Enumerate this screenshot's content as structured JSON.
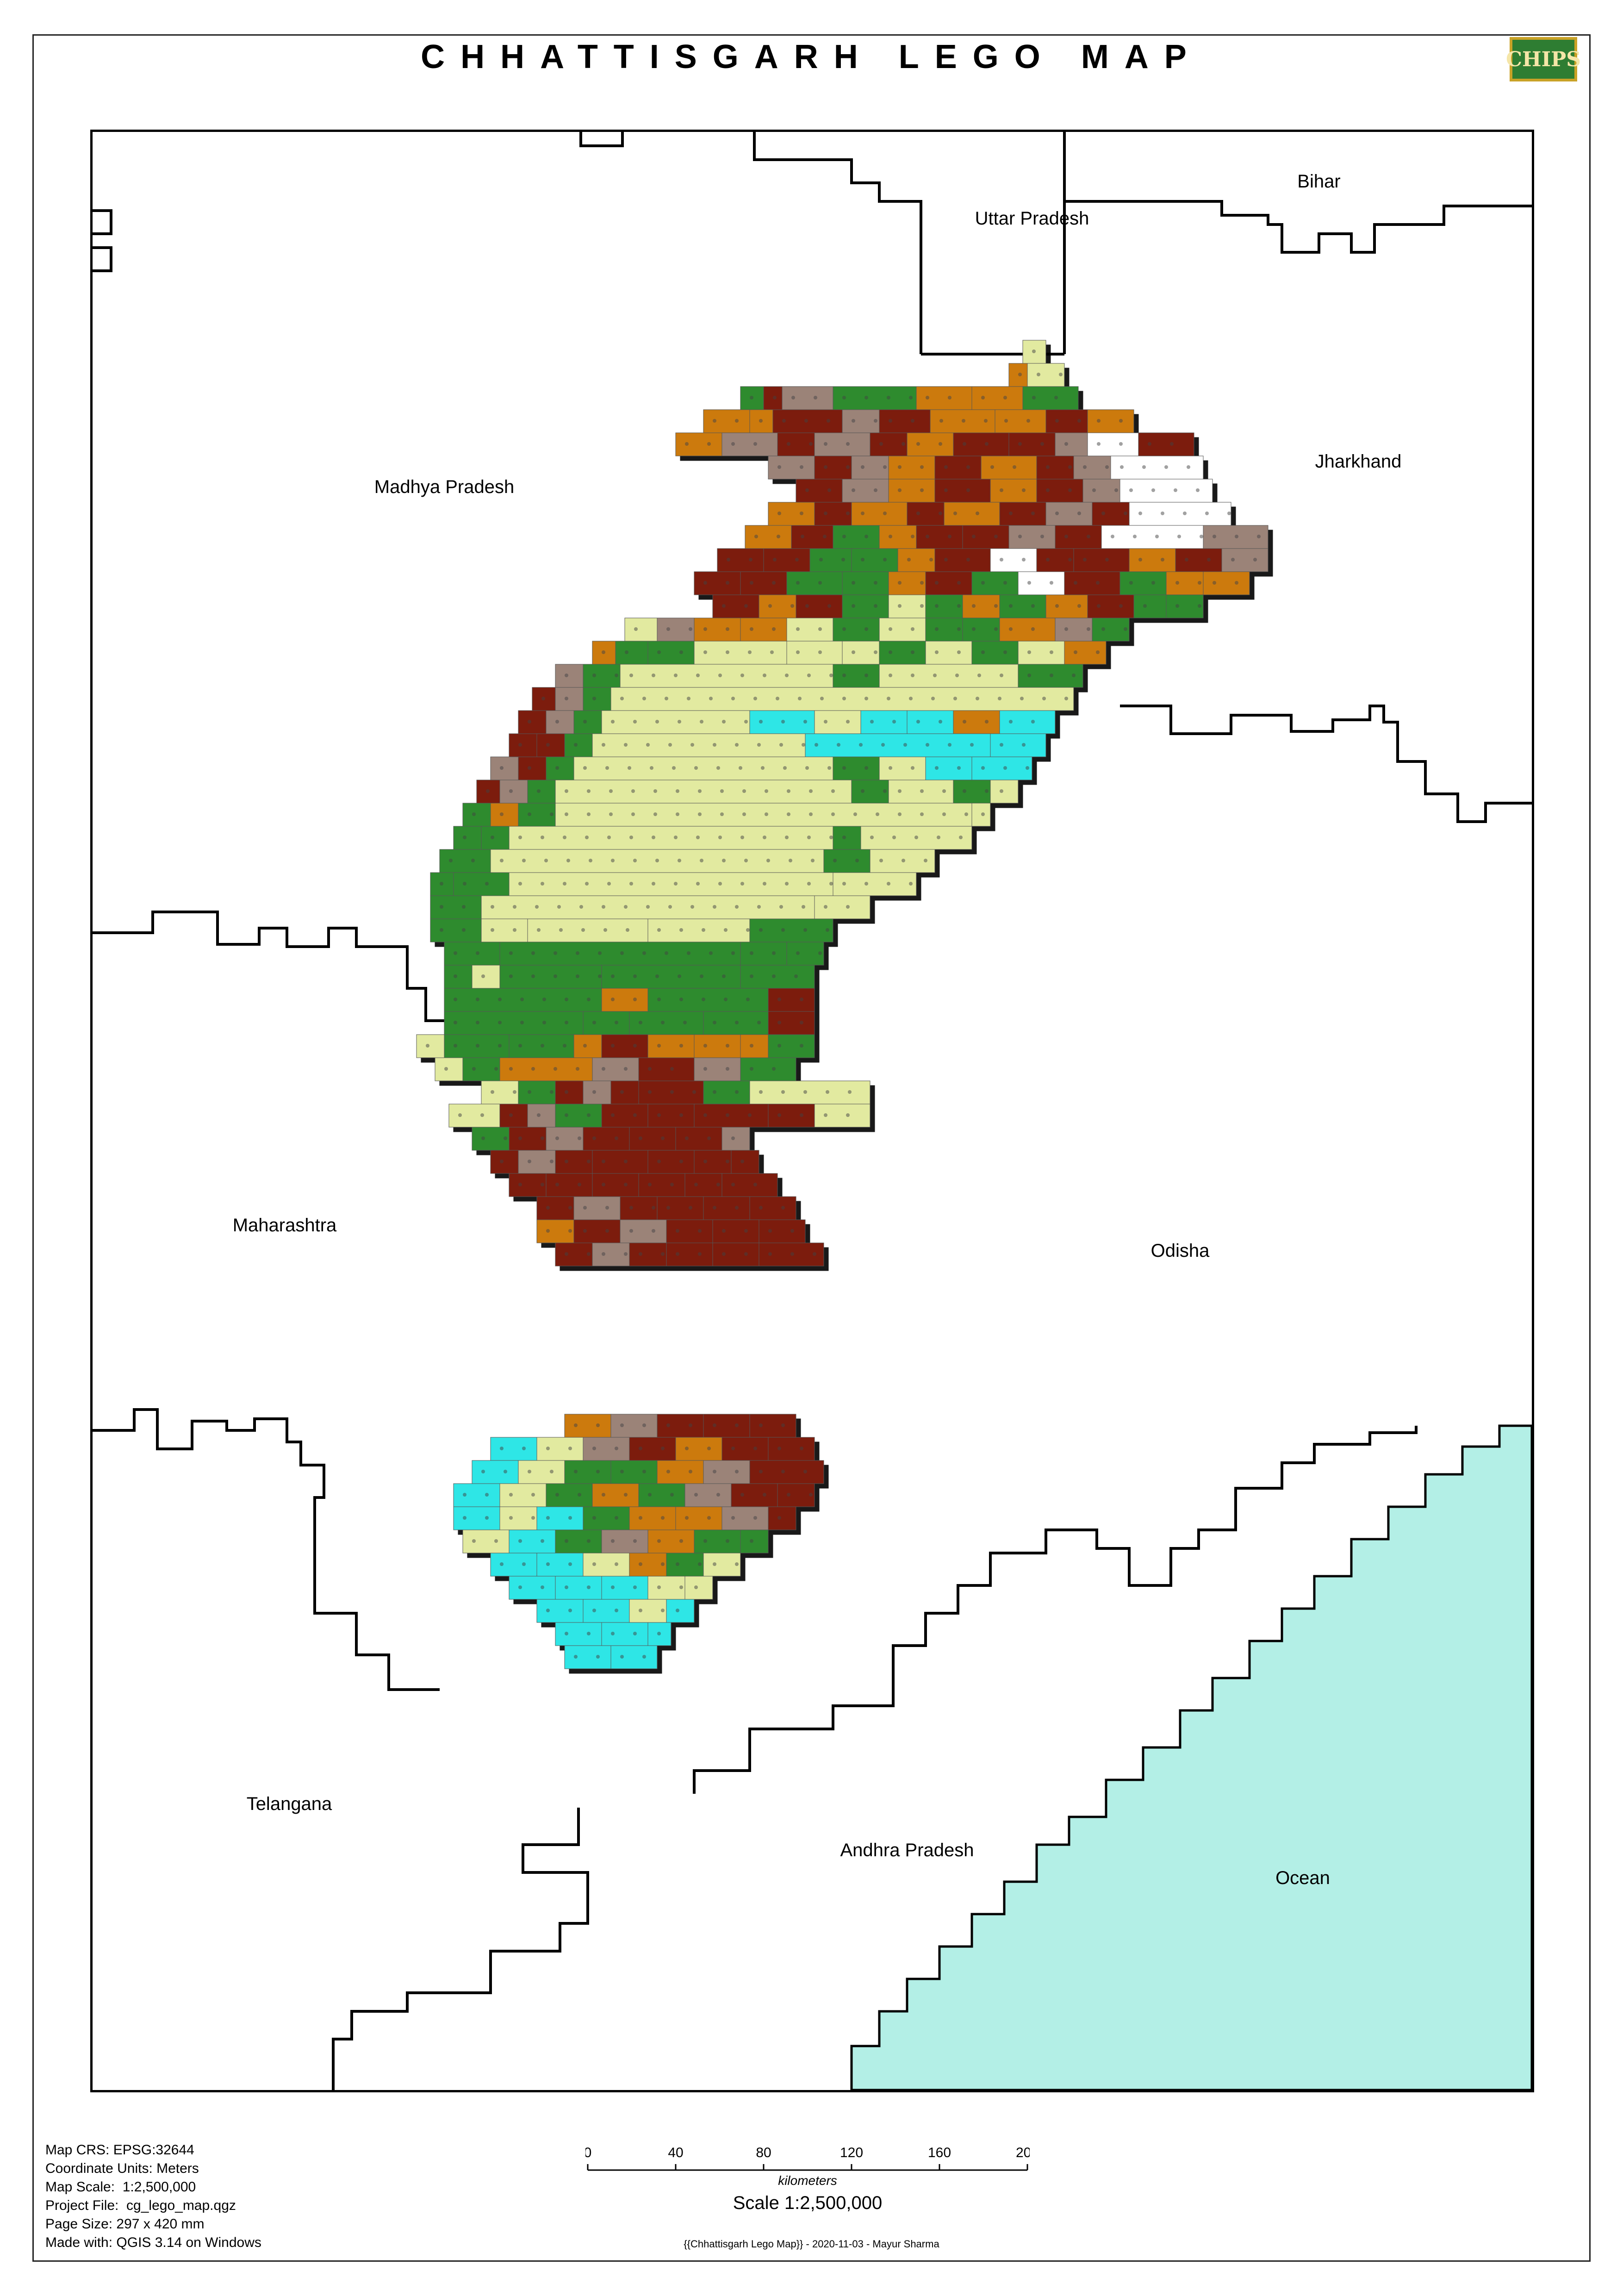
{
  "title": "CHHATTISGARH LEGO MAP",
  "logo_text": "CHIPS",
  "labels": {
    "bihar": "Bihar",
    "uttar_pradesh": "Uttar Pradesh",
    "madhya_pradesh": "Madhya Pradesh",
    "jharkhand": "Jharkhand",
    "maharashtra": "Maharashtra",
    "odisha": "Odisha",
    "telangana": "Telangana",
    "andhra_pradesh": "Andhra Pradesh",
    "ocean": "Ocean"
  },
  "metadata": {
    "crs": "Map CRS: EPSG:32644",
    "units": "Coordinate Units: Meters",
    "scale": "Map Scale:  1:2,500,000",
    "project": "Project File:  cg_lego_map.qgz",
    "page_size": "Page Size: 297 x 420 mm",
    "made_with": "Made with: QGIS 3.14 on Windows"
  },
  "scale_bar": {
    "ticks": [
      "0",
      "40",
      "80",
      "120",
      "160",
      "200"
    ],
    "unit": "kilometers",
    "scale_text": "Scale 1:2,500,000"
  },
  "credit": "{{Chhattisgarh Lego Map}} - 2020-11-03 - Mayur Sharma",
  "colors": {
    "plain": "#e2eaa0",
    "forest": "#2e8b2e",
    "hill": "#7b1a0d",
    "plateau": "#cc7a0e",
    "upland": "#9b8378",
    "peak": "#ffffff",
    "water": "#2ee6e6",
    "ocean": "#b3efe6"
  }
}
